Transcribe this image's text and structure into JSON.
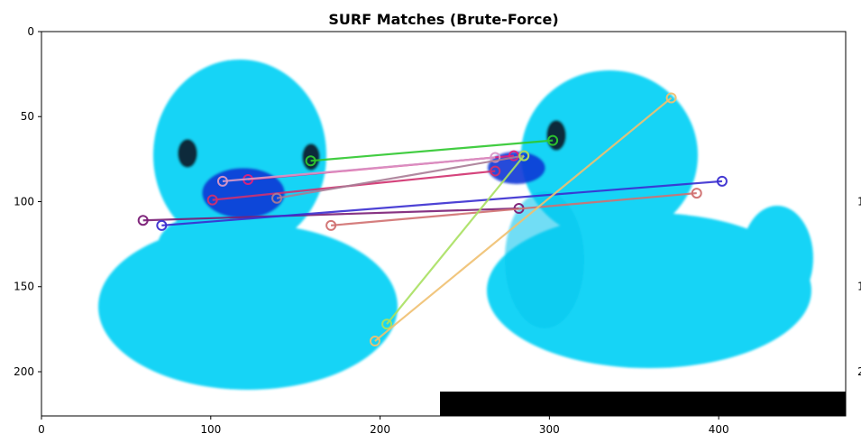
{
  "chart_data": {
    "type": "scatter",
    "title": "SURF Matches (Brute-Force)",
    "xlabel": "",
    "ylabel": "",
    "xlim": [
      0,
      475
    ],
    "ylim": [
      226,
      0
    ],
    "y_inverted": true,
    "x_ticks": [
      0,
      100,
      200,
      300,
      400
    ],
    "y_ticks": [
      0,
      50,
      100,
      150,
      200
    ],
    "right_edge_ticks": [
      "1",
      "1",
      "2"
    ],
    "grid": false,
    "background_image": "two-blue-rubber-ducks",
    "colors": {
      "duck": "#16d4f6",
      "duck_shadow": "#0aa7d6",
      "beak": "#1136d6",
      "black_bar": "#000000"
    },
    "matches": [
      {
        "x1": 159,
        "y1": 76,
        "x2": 302,
        "y2": 64,
        "color": "#2ec82e"
      },
      {
        "x1": 122,
        "y1": 87,
        "x2": 279,
        "y2": 73,
        "color": "#e0207a"
      },
      {
        "x1": 107,
        "y1": 88,
        "x2": 268,
        "y2": 74,
        "color": "#d898c8"
      },
      {
        "x1": 101,
        "y1": 99,
        "x2": 268,
        "y2": 82,
        "color": "#d0306e"
      },
      {
        "x1": 139,
        "y1": 98,
        "x2": 285,
        "y2": 73,
        "color": "#a87c96"
      },
      {
        "x1": 60,
        "y1": 111,
        "x2": 282,
        "y2": 104,
        "color": "#7a1e76"
      },
      {
        "x1": 71,
        "y1": 114,
        "x2": 402,
        "y2": 88,
        "color": "#3a2ed0"
      },
      {
        "x1": 171,
        "y1": 114,
        "x2": 387,
        "y2": 95,
        "color": "#d07070"
      },
      {
        "x1": 204,
        "y1": 172,
        "x2": 285,
        "y2": 73,
        "color": "#a8e060"
      },
      {
        "x1": 197,
        "y1": 182,
        "x2": 372,
        "y2": 39,
        "color": "#f0c070"
      }
    ]
  }
}
